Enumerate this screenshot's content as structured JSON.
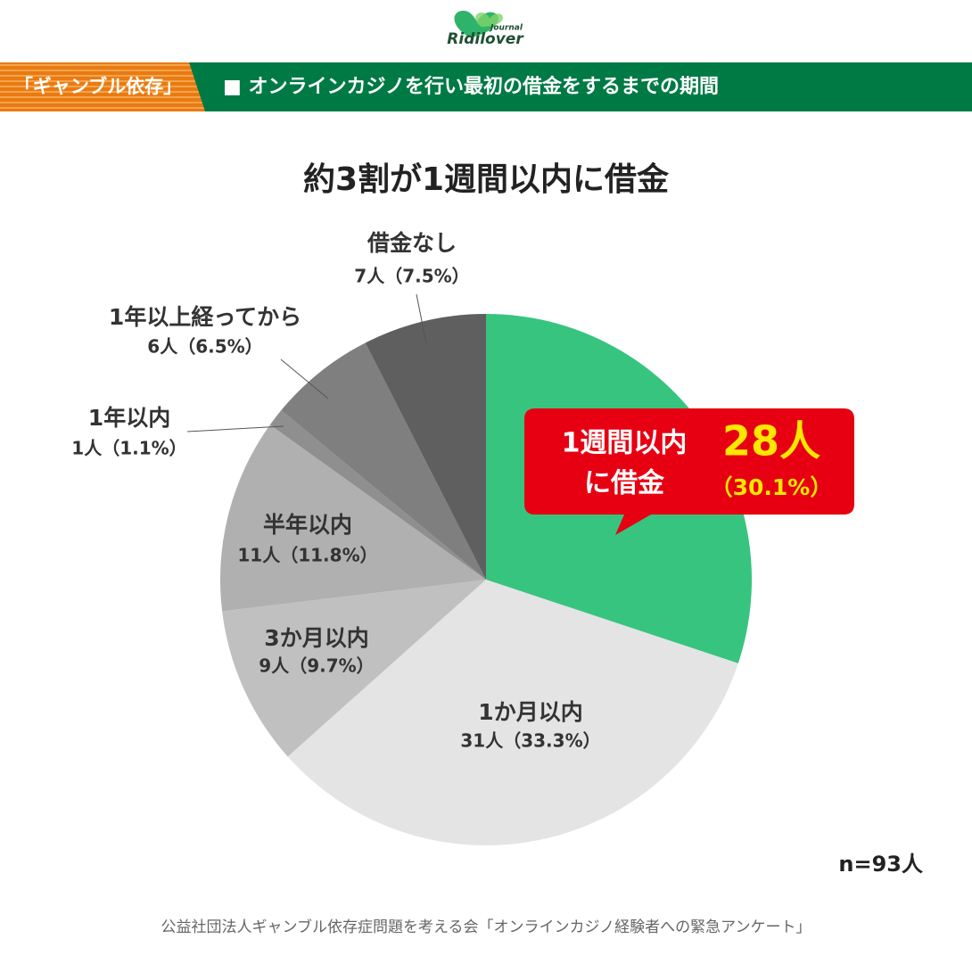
{
  "header": {
    "logo": "Ridilover",
    "logo_sub": "Journal",
    "tag": "「ギャンブル依存」",
    "heading": "■  オンラインカジノを行い最初の借金をするまでの期間"
  },
  "chart_data": {
    "type": "pie",
    "title": "約3割が1週間以内に借金",
    "categories": [
      "1週間以内",
      "1か月以内",
      "3か月以内",
      "半年以内",
      "1年以内",
      "1年以上経ってから",
      "借金なし"
    ],
    "values": [
      30.1,
      33.3,
      9.7,
      11.8,
      1.1,
      6.5,
      7.5
    ],
    "value_labels": [
      null,
      "31人（33.3%）",
      "9人（9.7%）",
      "11人（11.8%）",
      "1人（1.1%）",
      "6人（6.5%）",
      "7人（7.5%）"
    ],
    "colors": [
      "#37c47f",
      "#e4e4e4",
      "#c0c0c0",
      "#b0b0b0",
      "#8f8f8f",
      "#7f7f7f",
      "#5f5f5f"
    ],
    "callout": {
      "line2": "に借金",
      "count_label": "28人",
      "percent_label": "（30.1%）"
    },
    "note": "n=93人"
  },
  "footer": {
    "source": "公益社団法人ギャンブル依存症問題を考える会「オンラインカジノ経験者への緊急アンケート」"
  }
}
